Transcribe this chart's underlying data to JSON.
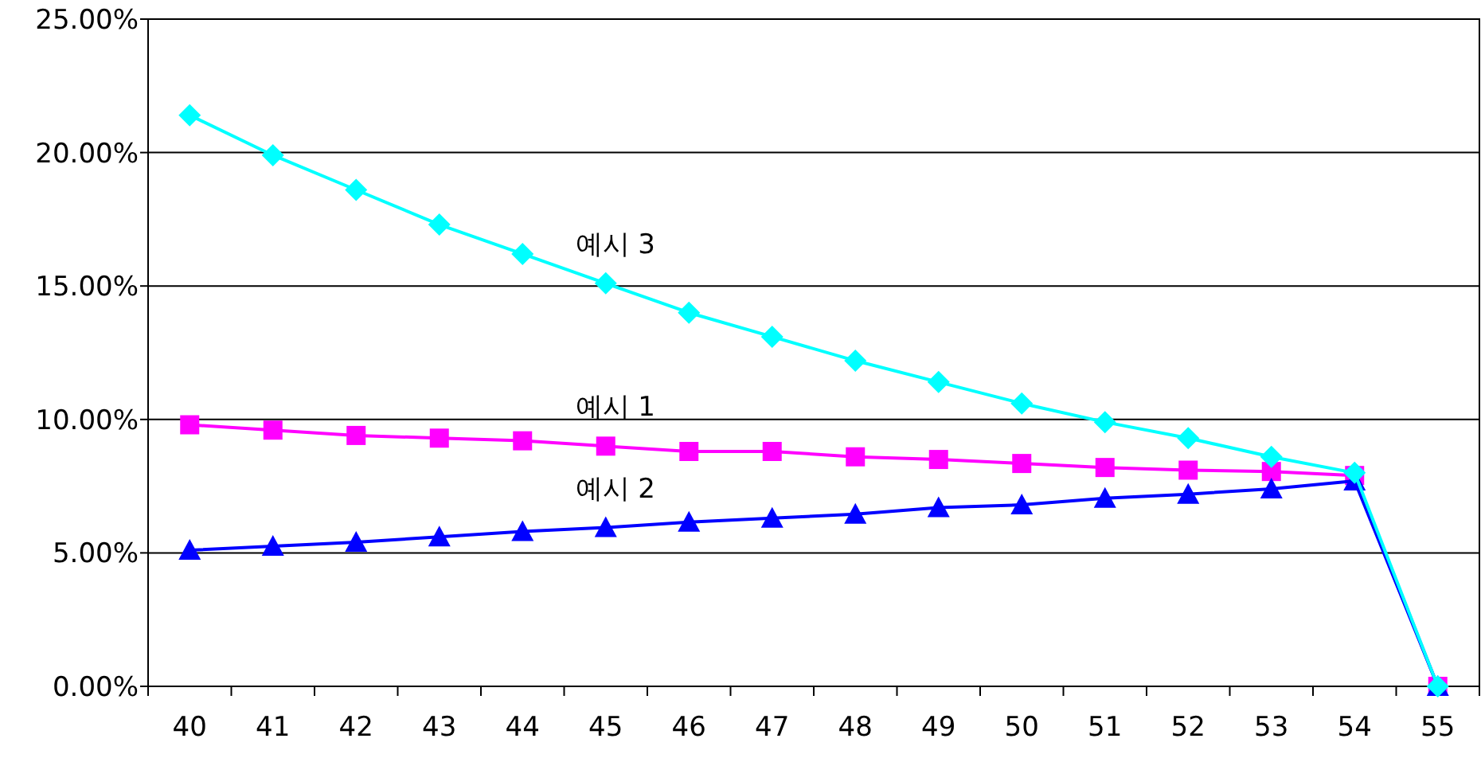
{
  "chart_data": {
    "type": "line",
    "categories": [
      "40",
      "41",
      "42",
      "43",
      "44",
      "45",
      "46",
      "47",
      "48",
      "49",
      "50",
      "51",
      "52",
      "53",
      "54",
      "55"
    ],
    "ylim": [
      0,
      25
    ],
    "yticks": [
      {
        "value": 0,
        "label": "0.00%"
      },
      {
        "value": 5,
        "label": "5.00%"
      },
      {
        "value": 10,
        "label": "10.00%"
      },
      {
        "value": 15,
        "label": "15.00%"
      },
      {
        "value": 20,
        "label": "20.00%"
      },
      {
        "value": 25,
        "label": "25.00%"
      }
    ],
    "grid": "y",
    "line_style": "solid",
    "series": [
      {
        "name": "예시 1",
        "color": "#ff00ff",
        "marker": "square",
        "values": [
          9.8,
          9.6,
          9.4,
          9.3,
          9.2,
          9.0,
          8.8,
          8.8,
          8.6,
          8.5,
          8.35,
          8.2,
          8.1,
          8.05,
          7.9,
          0
        ]
      },
      {
        "name": "예시 2",
        "color": "#0000ff",
        "marker": "triangle",
        "values": [
          5.1,
          5.25,
          5.4,
          5.6,
          5.8,
          5.95,
          6.15,
          6.3,
          6.45,
          6.7,
          6.8,
          7.05,
          7.2,
          7.4,
          7.7,
          0
        ]
      },
      {
        "name": "예시 3",
        "color": "#00ffff",
        "marker": "diamond",
        "values": [
          21.4,
          19.9,
          18.6,
          17.3,
          16.2,
          15.1,
          14.0,
          13.1,
          12.2,
          11.4,
          10.6,
          9.9,
          9.3,
          8.6,
          8.0,
          0
        ]
      }
    ]
  }
}
